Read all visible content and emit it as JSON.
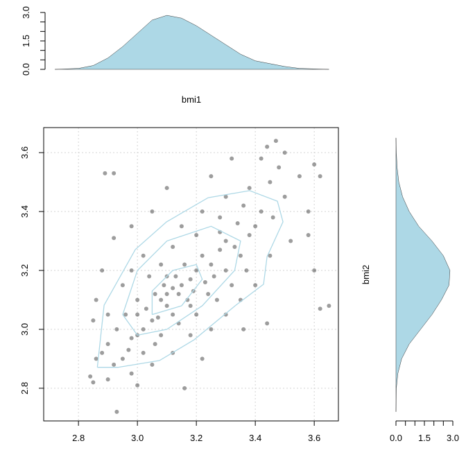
{
  "chart_data": [
    {
      "type": "scatter",
      "x": [
        3.05,
        3.08,
        3.12,
        3.15,
        3.18,
        3.2,
        3.1,
        3.02,
        3.0,
        2.98,
        3.14,
        3.22,
        3.25,
        3.28,
        3.3,
        3.33,
        3.26,
        3.17,
        3.06,
        3.04,
        3.0,
        2.96,
        2.93,
        2.9,
        2.88,
        2.95,
        3.02,
        3.08,
        3.12,
        3.18,
        3.24,
        3.3,
        3.35,
        3.38,
        3.4,
        3.42,
        3.36,
        3.28,
        3.2,
        3.12,
        3.08,
        3.02,
        2.98,
        3.15,
        3.22,
        3.3,
        3.38,
        3.45,
        3.5,
        3.48,
        3.42,
        3.55,
        3.58,
        3.52,
        3.45,
        3.4,
        3.35,
        3.3,
        3.25,
        3.18,
        3.12,
        3.05,
        2.98,
        2.92,
        2.86,
        2.84,
        2.85,
        2.93,
        3.16,
        3.22,
        3.36,
        3.44,
        3.62,
        3.65,
        3.6,
        3.58,
        3.6,
        3.62,
        3.44,
        3.47,
        3.32,
        3.25,
        3.1,
        3.05,
        2.98,
        2.92,
        2.89,
        2.92,
        2.88,
        2.86,
        2.85,
        2.9,
        2.95,
        3.1,
        3.16,
        3.14,
        3.2,
        3.27,
        3.32,
        3.06,
        3.0,
        3.1,
        3.13,
        3.19,
        3.23,
        2.97,
        3.03,
        3.07,
        3.09,
        3.28,
        3.34,
        3.46,
        2.9,
        3.0,
        3.5,
        3.37
      ],
      "y": [
        3.03,
        3.1,
        3.14,
        3.15,
        3.17,
        3.2,
        3.08,
        3.0,
        2.98,
        2.97,
        3.12,
        3.25,
        3.22,
        3.27,
        3.3,
        3.28,
        3.18,
        3.1,
        3.12,
        3.18,
        3.1,
        3.05,
        3.0,
        2.95,
        2.92,
        2.9,
        2.92,
        2.98,
        3.05,
        3.08,
        3.12,
        3.2,
        3.25,
        3.32,
        3.35,
        3.4,
        3.42,
        3.38,
        3.32,
        3.28,
        3.22,
        3.25,
        3.2,
        3.35,
        3.4,
        3.45,
        3.48,
        3.5,
        3.45,
        3.55,
        3.58,
        3.52,
        3.4,
        3.3,
        3.25,
        3.15,
        3.1,
        3.05,
        3.0,
        2.98,
        2.92,
        2.88,
        2.85,
        2.88,
        2.9,
        2.84,
        2.82,
        2.72,
        2.8,
        2.9,
        3.0,
        3.02,
        3.07,
        3.08,
        3.2,
        3.32,
        3.56,
        3.52,
        3.62,
        3.64,
        3.58,
        3.52,
        3.48,
        3.4,
        3.35,
        3.31,
        3.53,
        3.53,
        3.2,
        3.1,
        3.03,
        3.05,
        3.15,
        3.18,
        3.22,
        3.02,
        3.05,
        3.1,
        3.15,
        2.95,
        3.05,
        3.12,
        3.18,
        3.13,
        3.16,
        2.93,
        3.07,
        3.04,
        3.15,
        3.33,
        3.36,
        3.38,
        2.83,
        2.81,
        3.6,
        3.2
      ],
      "color": "#3c3c3c",
      "contours": [
        {
          "x": [
            2.864,
            2.887,
            2.993,
            3.099,
            3.24,
            3.381,
            3.475,
            3.494,
            3.44,
            3.428,
            3.334,
            3.193,
            3.075,
            2.934,
            2.864
          ],
          "y": [
            2.871,
            3.082,
            3.271,
            3.365,
            3.447,
            3.471,
            3.435,
            3.365,
            3.247,
            3.153,
            3.082,
            2.965,
            2.894,
            2.871,
            2.871
          ]
        },
        {
          "x": [
            3.0,
            2.95,
            3.0,
            3.1,
            3.25,
            3.35,
            3.33,
            3.22,
            3.1,
            3.0
          ],
          "y": [
            2.98,
            3.05,
            3.2,
            3.3,
            3.35,
            3.3,
            3.2,
            3.08,
            3.0,
            2.98
          ]
        },
        {
          "x": [
            3.05,
            3.05,
            3.12,
            3.2,
            3.22,
            3.15,
            3.05
          ],
          "y": [
            3.05,
            3.13,
            3.2,
            3.22,
            3.17,
            3.08,
            3.05
          ]
        }
      ],
      "contour_color": "#add8e6",
      "xlim": [
        2.682,
        3.682
      ],
      "ylim": [
        2.689,
        3.685
      ],
      "xticks": [
        2.8,
        {
          "value": 3,
          "label": "3.0"
        },
        3.2,
        3.4,
        3.6
      ],
      "yticks": [
        2.8,
        {
          "value": 3,
          "label": "3.0"
        },
        3.2,
        3.4,
        3.6
      ],
      "grid": true
    },
    {
      "type": "density",
      "x_label": "bmi1",
      "x": [
        2.72,
        2.8,
        2.85,
        2.9,
        2.95,
        3.0,
        3.05,
        3.1,
        3.15,
        3.2,
        3.25,
        3.3,
        3.35,
        3.4,
        3.45,
        3.5,
        3.55,
        3.65
      ],
      "values": [
        0,
        0.05,
        0.2,
        0.6,
        1.2,
        1.9,
        2.6,
        2.85,
        2.7,
        2.3,
        1.8,
        1.3,
        0.8,
        0.45,
        0.3,
        0.15,
        0.05,
        0
      ],
      "color": "#add8e6",
      "xlim": [
        2.682,
        3.682
      ],
      "ylim": [
        0,
        3
      ],
      "yticks": [
        {
          "value": 0,
          "label": "0.0"
        },
        1.5,
        {
          "value": 3,
          "label": "3.0"
        }
      ],
      "minor_ticks": [
        0.5,
        1,
        2,
        2.5
      ]
    },
    {
      "type": "density",
      "y_label": "bmi2",
      "x": [
        2.72,
        2.8,
        2.85,
        2.9,
        2.95,
        3.0,
        3.05,
        3.1,
        3.15,
        3.2,
        3.25,
        3.3,
        3.35,
        3.4,
        3.45,
        3.5,
        3.55,
        3.6,
        3.65
      ],
      "values": [
        0,
        0.02,
        0.1,
        0.3,
        0.7,
        1.3,
        1.9,
        2.4,
        2.8,
        2.85,
        2.5,
        1.9,
        1.2,
        0.7,
        0.35,
        0.15,
        0.06,
        0.02,
        0
      ],
      "color": "#add8e6",
      "xlim": [
        2.689,
        3.685
      ],
      "ylim": [
        0,
        3
      ],
      "yticks": [
        {
          "value": 0,
          "label": "0.0"
        },
        1.5,
        {
          "value": 3,
          "label": "3.0"
        }
      ],
      "minor_ticks": [
        0.5,
        1,
        2,
        2.5
      ]
    }
  ]
}
